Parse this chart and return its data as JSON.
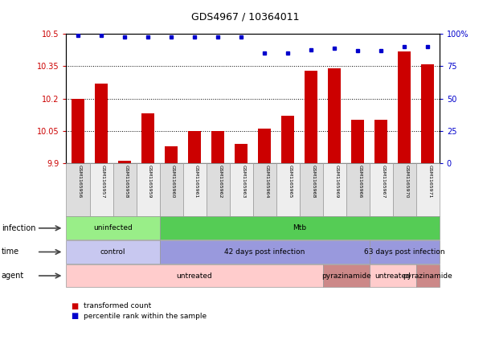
{
  "title": "GDS4967 / 10364011",
  "samples": [
    "GSM1165956",
    "GSM1165957",
    "GSM1165958",
    "GSM1165959",
    "GSM1165960",
    "GSM1165961",
    "GSM1165962",
    "GSM1165963",
    "GSM1165964",
    "GSM1165965",
    "GSM1165968",
    "GSM1165969",
    "GSM1165966",
    "GSM1165967",
    "GSM1165970",
    "GSM1165971"
  ],
  "bar_values": [
    10.2,
    10.27,
    9.91,
    10.13,
    9.98,
    10.05,
    10.05,
    9.99,
    10.06,
    10.12,
    10.33,
    10.34,
    10.1,
    10.1,
    10.42,
    10.36
  ],
  "percentile_values": [
    99,
    99,
    98,
    98,
    98,
    98,
    98,
    98,
    85,
    85,
    88,
    89,
    87,
    87,
    90,
    90
  ],
  "ylim_left": [
    9.9,
    10.5
  ],
  "ylim_right": [
    0,
    100
  ],
  "yticks_left": [
    9.9,
    10.05,
    10.2,
    10.35,
    10.5
  ],
  "ytick_labels_left": [
    "9.9",
    "10.05",
    "10.2",
    "10.35",
    "10.5"
  ],
  "yticks_right": [
    0,
    25,
    50,
    75,
    100
  ],
  "ytick_labels_right": [
    "0",
    "25",
    "50",
    "75",
    "100%"
  ],
  "bar_color": "#cc0000",
  "dot_color": "#0000cc",
  "bg_color": "#ffffff",
  "plot_bg": "#ffffff",
  "infection_labels": [
    {
      "text": "uninfected",
      "start": 0,
      "end": 4,
      "color": "#99ee88"
    },
    {
      "text": "Mtb",
      "start": 4,
      "end": 16,
      "color": "#55cc55"
    }
  ],
  "time_labels": [
    {
      "text": "control",
      "start": 0,
      "end": 4,
      "color": "#c8c8f0"
    },
    {
      "text": "42 days post infection",
      "start": 4,
      "end": 13,
      "color": "#9999dd"
    },
    {
      "text": "63 days post infection",
      "start": 13,
      "end": 16,
      "color": "#9999dd"
    }
  ],
  "agent_labels": [
    {
      "text": "untreated",
      "start": 0,
      "end": 11,
      "color": "#ffcccc"
    },
    {
      "text": "pyrazinamide",
      "start": 11,
      "end": 13,
      "color": "#cc8888"
    },
    {
      "text": "untreated",
      "start": 13,
      "end": 15,
      "color": "#ffcccc"
    },
    {
      "text": "pyrazinamide",
      "start": 15,
      "end": 16,
      "color": "#cc8888"
    }
  ],
  "row_labels": [
    "infection",
    "time",
    "agent"
  ],
  "legend_items": [
    {
      "label": "transformed count",
      "color": "#cc0000"
    },
    {
      "label": "percentile rank within the sample",
      "color": "#0000cc"
    }
  ],
  "cell_colors": [
    "#dddddd",
    "#eeeeee"
  ]
}
